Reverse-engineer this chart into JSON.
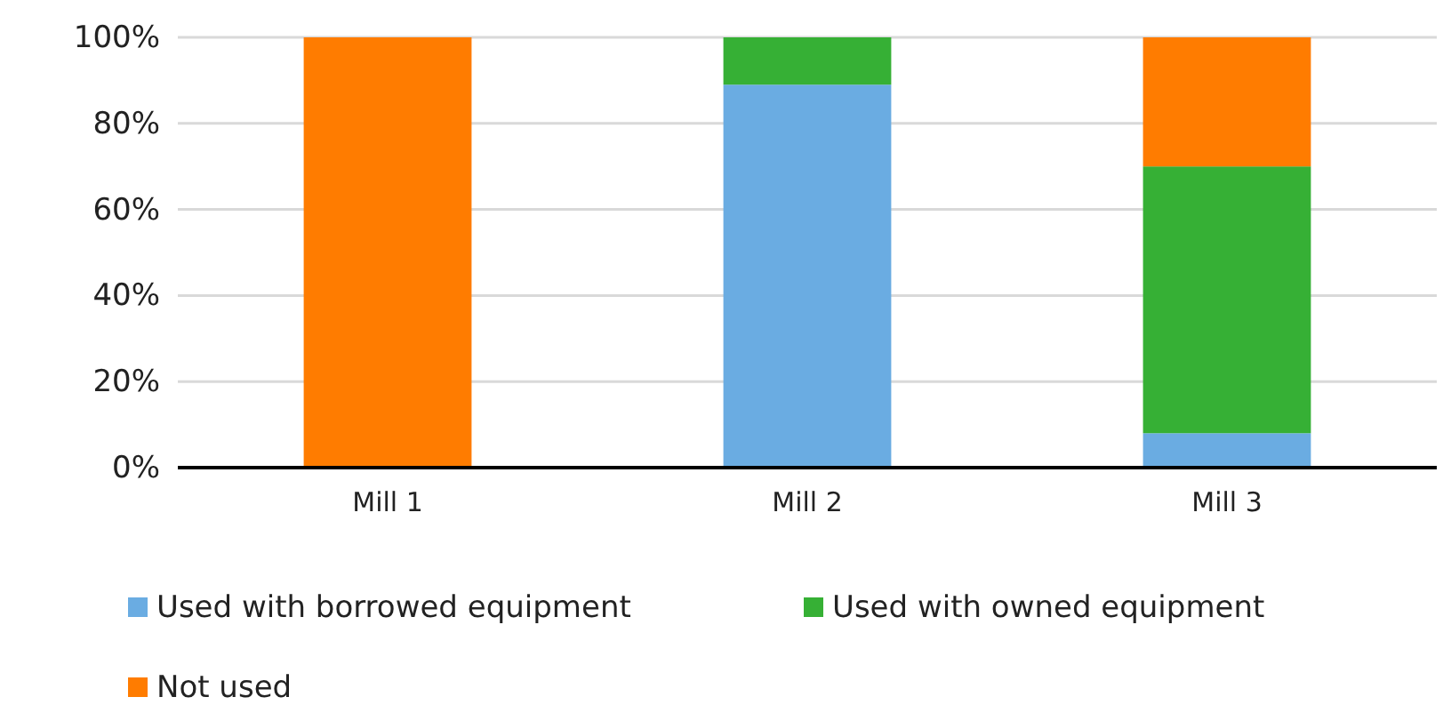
{
  "chart_data": {
    "type": "bar",
    "stacked": true,
    "categories": [
      "Mill 1",
      "Mill 2",
      "Mill 3"
    ],
    "series": [
      {
        "name": "Used with borrowed equipment",
        "color": "#6aace2",
        "values": [
          0,
          89,
          8
        ]
      },
      {
        "name": "Used with owned equipment",
        "color": "#36b035",
        "values": [
          0,
          11,
          62
        ]
      },
      {
        "name": "Not used",
        "color": "#ff7c00",
        "values": [
          100,
          0,
          30
        ]
      }
    ],
    "ylim": [
      0,
      100
    ],
    "yticks": [
      {
        "value": 0,
        "label": "0%"
      },
      {
        "value": 20,
        "label": "20%"
      },
      {
        "value": 40,
        "label": "40%"
      },
      {
        "value": 60,
        "label": "60%"
      },
      {
        "value": 80,
        "label": "80%"
      },
      {
        "value": 100,
        "label": "100%"
      }
    ],
    "grid": "y",
    "legend": "bottom"
  }
}
